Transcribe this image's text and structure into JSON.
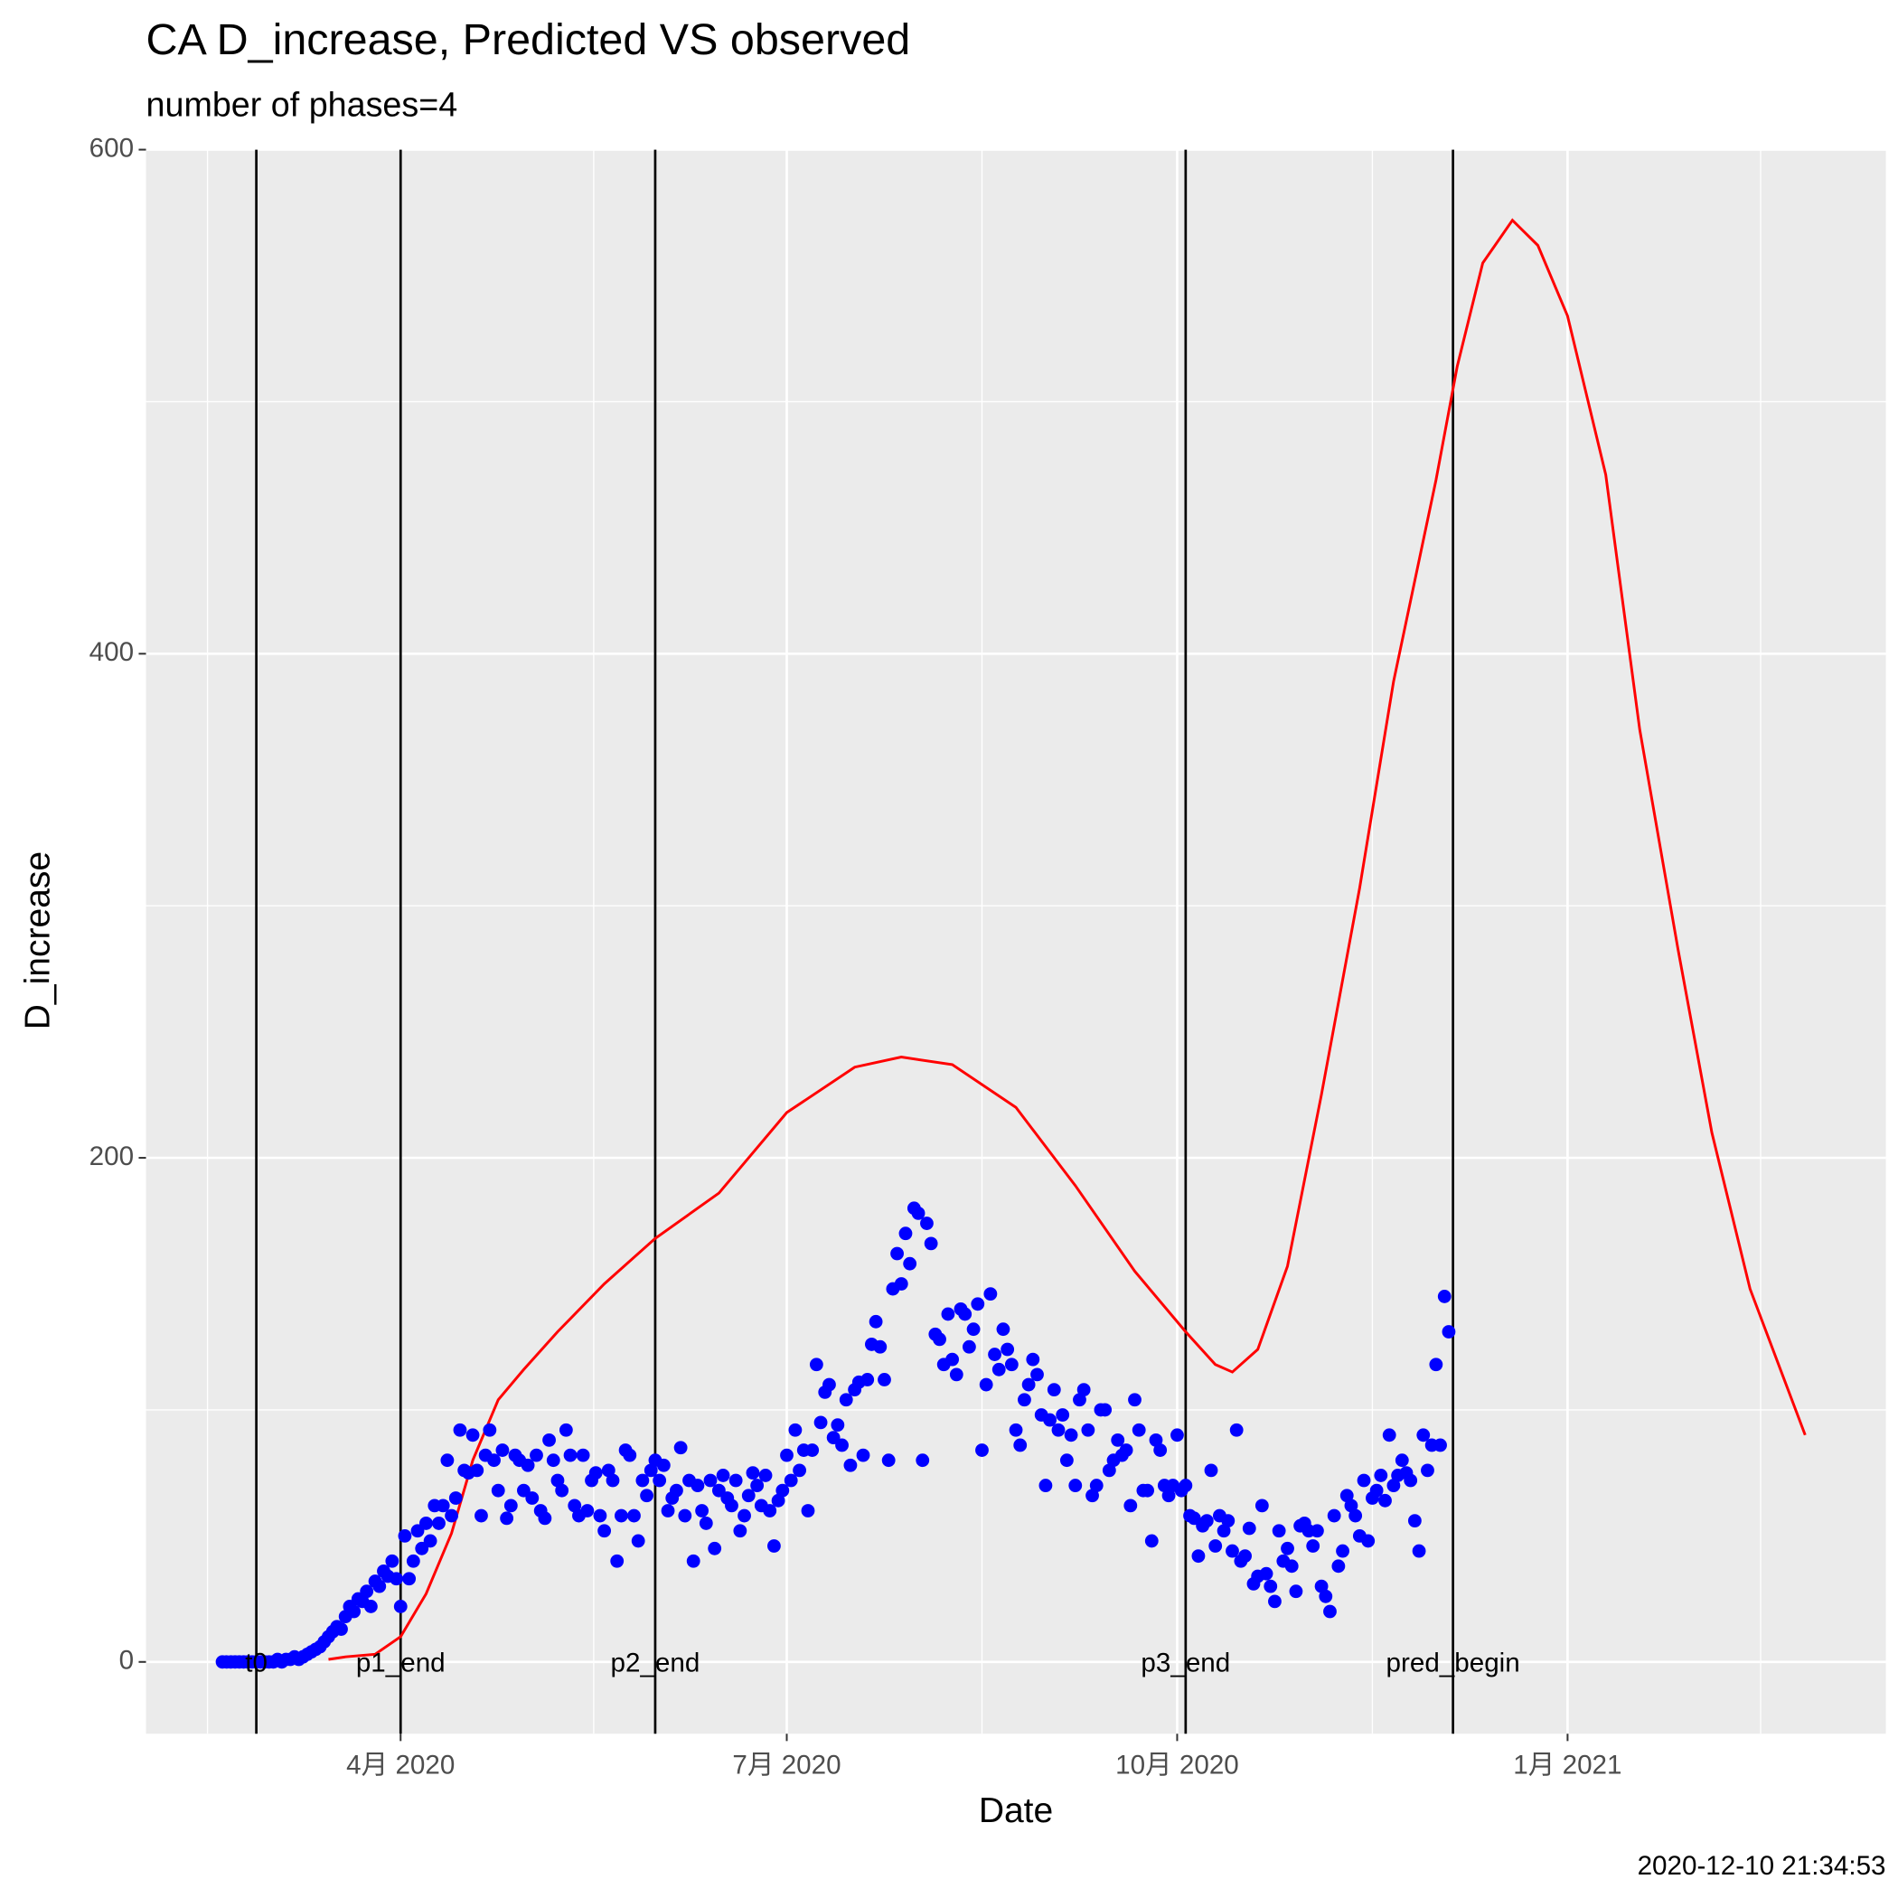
{
  "chart_data": {
    "type": "scatter",
    "title": "CA D_increase, Predicted VS observed",
    "subtitle": "number of phases=4",
    "x_label": "Date",
    "y_label": "D_increase",
    "caption": "2020-12-10 21:34:53",
    "xlim": [
      "2020-02-01",
      "2021-03-17"
    ],
    "ylim": [
      -28.5,
      600
    ],
    "xticks": [
      {
        "value": "2020-04-01",
        "label": "4月 2020"
      },
      {
        "value": "2020-07-01",
        "label": "7月 2020"
      },
      {
        "value": "2020-10-01",
        "label": "10月 2020"
      },
      {
        "value": "2021-01-01",
        "label": "1月 2021"
      }
    ],
    "yticks": [
      0,
      200,
      400,
      600
    ],
    "grid": true,
    "vlines": [
      {
        "x": "2020-02-27",
        "label": "t0"
      },
      {
        "x": "2020-04-01",
        "label": "p1_end"
      },
      {
        "x": "2020-05-31",
        "label": "p2_end"
      },
      {
        "x": "2020-10-03",
        "label": "p3_end"
      },
      {
        "x": "2020-12-05",
        "label": "pred_begin"
      }
    ],
    "observed": {
      "color": "#0000ff",
      "x": [
        "2020-02-19",
        "2020-02-20",
        "2020-02-21",
        "2020-02-22",
        "2020-02-23",
        "2020-02-24",
        "2020-02-25",
        "2020-02-26",
        "2020-02-27",
        "2020-02-28",
        "2020-02-29",
        "2020-03-01",
        "2020-03-02",
        "2020-03-03",
        "2020-03-04",
        "2020-03-05",
        "2020-03-06",
        "2020-03-07",
        "2020-03-08",
        "2020-03-09",
        "2020-03-10",
        "2020-03-11",
        "2020-03-12",
        "2020-03-13",
        "2020-03-14",
        "2020-03-15",
        "2020-03-16",
        "2020-03-17",
        "2020-03-18",
        "2020-03-19",
        "2020-03-20",
        "2020-03-21",
        "2020-03-22",
        "2020-03-23",
        "2020-03-24",
        "2020-03-25",
        "2020-03-26",
        "2020-03-27",
        "2020-03-28",
        "2020-03-29",
        "2020-03-30",
        "2020-03-31",
        "2020-04-01",
        "2020-04-02",
        "2020-04-03",
        "2020-04-04",
        "2020-04-05",
        "2020-04-06",
        "2020-04-07",
        "2020-04-08",
        "2020-04-09",
        "2020-04-10",
        "2020-04-11",
        "2020-04-12",
        "2020-04-13",
        "2020-04-14",
        "2020-04-15",
        "2020-04-16",
        "2020-04-17",
        "2020-04-18",
        "2020-04-19",
        "2020-04-20",
        "2020-04-21",
        "2020-04-22",
        "2020-04-23",
        "2020-04-24",
        "2020-04-25",
        "2020-04-26",
        "2020-04-27",
        "2020-04-28",
        "2020-04-29",
        "2020-04-30",
        "2020-05-01",
        "2020-05-02",
        "2020-05-03",
        "2020-05-04",
        "2020-05-05",
        "2020-05-06",
        "2020-05-07",
        "2020-05-08",
        "2020-05-09",
        "2020-05-10",
        "2020-05-11",
        "2020-05-12",
        "2020-05-13",
        "2020-05-14",
        "2020-05-15",
        "2020-05-16",
        "2020-05-17",
        "2020-05-18",
        "2020-05-19",
        "2020-05-20",
        "2020-05-21",
        "2020-05-22",
        "2020-05-23",
        "2020-05-24",
        "2020-05-25",
        "2020-05-26",
        "2020-05-27",
        "2020-05-28",
        "2020-05-29",
        "2020-05-30",
        "2020-05-31",
        "2020-06-01",
        "2020-06-02",
        "2020-06-03",
        "2020-06-04",
        "2020-06-05",
        "2020-06-06",
        "2020-06-07",
        "2020-06-08",
        "2020-06-09",
        "2020-06-10",
        "2020-06-11",
        "2020-06-12",
        "2020-06-13",
        "2020-06-14",
        "2020-06-15",
        "2020-06-16",
        "2020-06-17",
        "2020-06-18",
        "2020-06-19",
        "2020-06-20",
        "2020-06-21",
        "2020-06-22",
        "2020-06-23",
        "2020-06-24",
        "2020-06-25",
        "2020-06-26",
        "2020-06-27",
        "2020-06-28",
        "2020-06-29",
        "2020-06-30",
        "2020-07-01",
        "2020-07-02",
        "2020-07-03",
        "2020-07-04",
        "2020-07-05",
        "2020-07-06",
        "2020-07-07",
        "2020-07-08",
        "2020-07-09",
        "2020-07-10",
        "2020-07-11",
        "2020-07-12",
        "2020-07-13",
        "2020-07-14",
        "2020-07-15",
        "2020-07-16",
        "2020-07-17",
        "2020-07-18",
        "2020-07-19",
        "2020-07-20",
        "2020-07-21",
        "2020-07-22",
        "2020-07-23",
        "2020-07-24",
        "2020-07-25",
        "2020-07-26",
        "2020-07-27",
        "2020-07-28",
        "2020-07-29",
        "2020-07-30",
        "2020-07-31",
        "2020-08-01",
        "2020-08-02",
        "2020-08-03",
        "2020-08-04",
        "2020-08-05",
        "2020-08-06",
        "2020-08-07",
        "2020-08-08",
        "2020-08-09",
        "2020-08-10",
        "2020-08-11",
        "2020-08-12",
        "2020-08-13",
        "2020-08-14",
        "2020-08-15",
        "2020-08-16",
        "2020-08-17",
        "2020-08-18",
        "2020-08-19",
        "2020-08-20",
        "2020-08-21",
        "2020-08-22",
        "2020-08-23",
        "2020-08-24",
        "2020-08-25",
        "2020-08-26",
        "2020-08-27",
        "2020-08-28",
        "2020-08-29",
        "2020-08-30",
        "2020-08-31",
        "2020-09-01",
        "2020-09-02",
        "2020-09-03",
        "2020-09-04",
        "2020-09-05",
        "2020-09-06",
        "2020-09-07",
        "2020-09-08",
        "2020-09-09",
        "2020-09-10",
        "2020-09-11",
        "2020-09-12",
        "2020-09-13",
        "2020-09-14",
        "2020-09-15",
        "2020-09-16",
        "2020-09-17",
        "2020-09-18",
        "2020-09-19",
        "2020-09-20",
        "2020-09-21",
        "2020-09-22",
        "2020-09-23",
        "2020-09-24",
        "2020-09-25",
        "2020-09-26",
        "2020-09-27",
        "2020-09-28",
        "2020-09-29",
        "2020-09-30",
        "2020-10-01",
        "2020-10-02",
        "2020-10-03",
        "2020-10-04",
        "2020-10-05",
        "2020-10-06",
        "2020-10-07",
        "2020-10-08",
        "2020-10-09",
        "2020-10-10",
        "2020-10-11",
        "2020-10-12",
        "2020-10-13",
        "2020-10-14",
        "2020-10-15",
        "2020-10-16",
        "2020-10-17",
        "2020-10-18",
        "2020-10-19",
        "2020-10-20",
        "2020-10-21",
        "2020-10-22",
        "2020-10-23",
        "2020-10-24",
        "2020-10-25",
        "2020-10-26",
        "2020-10-27",
        "2020-10-28",
        "2020-10-29",
        "2020-10-30",
        "2020-10-31",
        "2020-11-01",
        "2020-11-02",
        "2020-11-03",
        "2020-11-04",
        "2020-11-05",
        "2020-11-06",
        "2020-11-07",
        "2020-11-08",
        "2020-11-09",
        "2020-11-10",
        "2020-11-11",
        "2020-11-12",
        "2020-11-13",
        "2020-11-14",
        "2020-11-15",
        "2020-11-16",
        "2020-11-17",
        "2020-11-18",
        "2020-11-19",
        "2020-11-20",
        "2020-11-21",
        "2020-11-22",
        "2020-11-23",
        "2020-11-24",
        "2020-11-25",
        "2020-11-26",
        "2020-11-27",
        "2020-11-28",
        "2020-11-29",
        "2020-11-30",
        "2020-12-01",
        "2020-12-02",
        "2020-12-03",
        "2020-12-04"
      ],
      "values": [
        0,
        0,
        0,
        0,
        0,
        0,
        0,
        0,
        0,
        0,
        0,
        0,
        0,
        1,
        0,
        1,
        1,
        2,
        1,
        2,
        3,
        4,
        5,
        6,
        8,
        10,
        12,
        14,
        13,
        18,
        22,
        20,
        25,
        24,
        28,
        22,
        32,
        30,
        36,
        34,
        40,
        33,
        22,
        50,
        33,
        40,
        52,
        45,
        55,
        48,
        62,
        55,
        62,
        80,
        58,
        65,
        92,
        76,
        75,
        90,
        76,
        58,
        82,
        92,
        80,
        68,
        84,
        57,
        62,
        82,
        80,
        68,
        78,
        65,
        82,
        60,
        57,
        88,
        80,
        72,
        68,
        92,
        82,
        62,
        58,
        82,
        60,
        72,
        75,
        58,
        52,
        76,
        72,
        40,
        58,
        84,
        82,
        58,
        48,
        72,
        66,
        76,
        80,
        72,
        78,
        60,
        65,
        68,
        85,
        58,
        72,
        40,
        70,
        60,
        55,
        72,
        45,
        68,
        74,
        65,
        62,
        72,
        52,
        58,
        66,
        75,
        70,
        62,
        74,
        60,
        46,
        64,
        68,
        82,
        72,
        92,
        76,
        84,
        60,
        84,
        118,
        95,
        107,
        110,
        89,
        94,
        86,
        104,
        78,
        108,
        111,
        82,
        112,
        126,
        135,
        125,
        112,
        80,
        148,
        162,
        150,
        170,
        158,
        180,
        178,
        80,
        174,
        166,
        130,
        128,
        118,
        138,
        120,
        114,
        140,
        138,
        125,
        132,
        142,
        84,
        110,
        146,
        122,
        116,
        132,
        124,
        118,
        92,
        86,
        104,
        110,
        120,
        114,
        98,
        70,
        96,
        108,
        92,
        98,
        80,
        90,
        70,
        104,
        108,
        92,
        66,
        70,
        100,
        100,
        76,
        80,
        88,
        82,
        84,
        62,
        104,
        92,
        68,
        68,
        48,
        88,
        84,
        70,
        66,
        70,
        90,
        68,
        70,
        58,
        57,
        42,
        54,
        56,
        76,
        46,
        58,
        52,
        56,
        44,
        92,
        40,
        42,
        53,
        31,
        34,
        62,
        35,
        30,
        24,
        52,
        40,
        45,
        38,
        28,
        54,
        55,
        52,
        46,
        52,
        30,
        26,
        20,
        58,
        38,
        44,
        66,
        62,
        58,
        50,
        72,
        48,
        65,
        68,
        74,
        64,
        90,
        70,
        74,
        80,
        75,
        72,
        56,
        44,
        90,
        76,
        86,
        118,
        86,
        145,
        131
      ]
    },
    "predicted": {
      "color": "#ff0000",
      "x": [
        "2020-03-15",
        "2020-03-19",
        "2020-03-26",
        "2020-04-01",
        "2020-04-07",
        "2020-04-13",
        "2020-04-18",
        "2020-04-24",
        "2020-04-30",
        "2020-05-08",
        "2020-05-19",
        "2020-05-31",
        "2020-06-15",
        "2020-07-01",
        "2020-07-17",
        "2020-07-28",
        "2020-08-09",
        "2020-08-24",
        "2020-09-07",
        "2020-09-21",
        "2020-10-03",
        "2020-10-10",
        "2020-10-14",
        "2020-10-20",
        "2020-10-27",
        "2020-11-04",
        "2020-11-13",
        "2020-11-21",
        "2020-12-01",
        "2020-12-06",
        "2020-12-12",
        "2020-12-19",
        "2020-12-25",
        "2021-01-01",
        "2021-01-10",
        "2021-01-18",
        "2021-01-27",
        "2021-02-04",
        "2021-02-13",
        "2021-02-26"
      ],
      "values": [
        1,
        2,
        3,
        10,
        27,
        51,
        80,
        104,
        116,
        131,
        150,
        168,
        186,
        218,
        236,
        240,
        237,
        220,
        189,
        155,
        131,
        118,
        115,
        124,
        157,
        225,
        307,
        389,
        469,
        514,
        555,
        572,
        562,
        534,
        471,
        370,
        283,
        210,
        148,
        90
      ]
    }
  }
}
